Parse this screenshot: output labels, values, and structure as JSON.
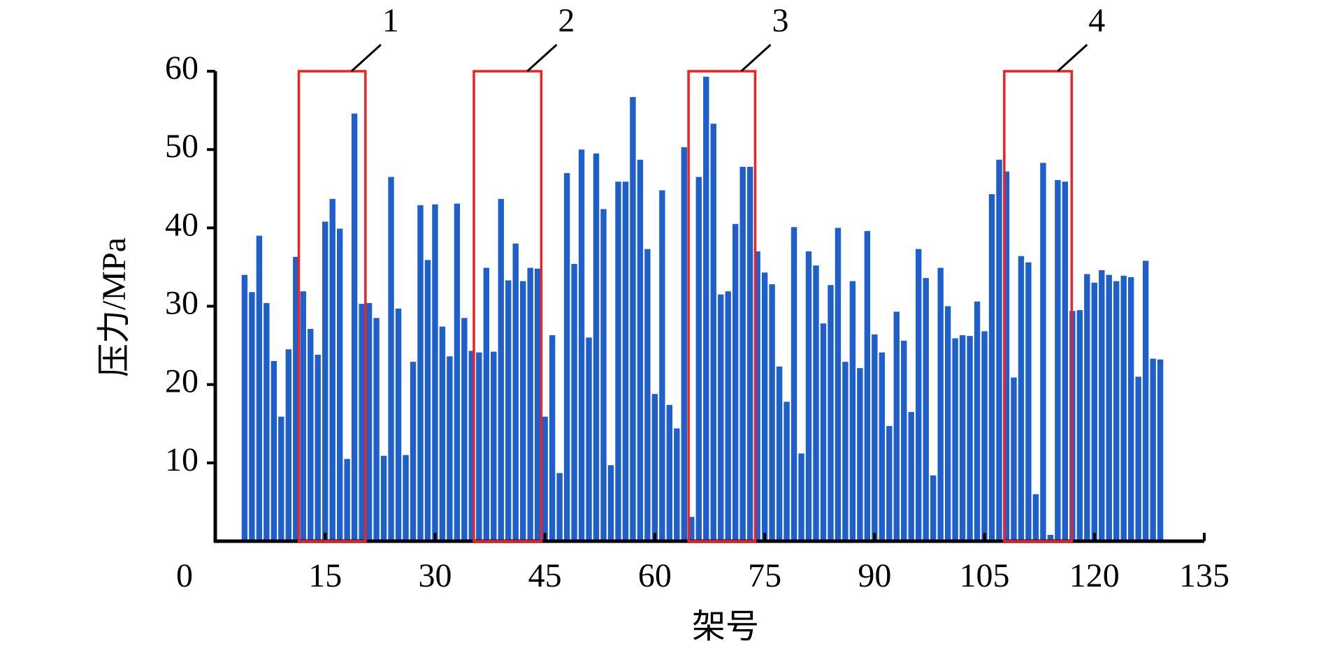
{
  "chart_data": {
    "type": "bar",
    "x_label": "架号",
    "y_label": "压力/MPa",
    "x": [
      4,
      5,
      6,
      7,
      8,
      9,
      10,
      11,
      12,
      13,
      14,
      15,
      16,
      17,
      18,
      19,
      20,
      21,
      22,
      23,
      24,
      25,
      26,
      27,
      28,
      29,
      30,
      31,
      32,
      33,
      34,
      35,
      36,
      37,
      38,
      39,
      40,
      41,
      42,
      43,
      44,
      45,
      46,
      47,
      48,
      49,
      50,
      51,
      52,
      53,
      54,
      55,
      56,
      57,
      58,
      59,
      60,
      61,
      62,
      63,
      64,
      65,
      66,
      67,
      68,
      69,
      70,
      71,
      72,
      73,
      74,
      75,
      76,
      77,
      78,
      79,
      80,
      81,
      82,
      83,
      84,
      85,
      86,
      87,
      88,
      89,
      90,
      91,
      92,
      93,
      94,
      95,
      96,
      97,
      98,
      99,
      100,
      101,
      102,
      103,
      104,
      105,
      106,
      107,
      108,
      109,
      110,
      111,
      112,
      113,
      114,
      115,
      116,
      117,
      118,
      119,
      120,
      121,
      122,
      123,
      124,
      125,
      126,
      127,
      128,
      129
    ],
    "values": [
      34,
      31.8,
      39,
      30.4,
      23,
      15.9,
      24.5,
      36.3,
      31.9,
      27.1,
      23.8,
      40.8,
      43.7,
      39.9,
      10.5,
      54.6,
      30.3,
      30.4,
      28.5,
      10.9,
      46.5,
      29.7,
      11,
      22.9,
      42.9,
      35.9,
      43,
      27.4,
      23.6,
      43.1,
      28.5,
      24.3,
      24.1,
      34.9,
      24.2,
      43.7,
      33.3,
      38,
      33.2,
      34.9,
      34.8,
      15.9,
      26.3,
      8.7,
      47,
      35.4,
      50,
      26,
      49.5,
      42.4,
      9.7,
      45.9,
      45.9,
      56.7,
      48.7,
      37.3,
      18.8,
      44.8,
      17.4,
      14.4,
      50.3,
      3.1,
      46.5,
      59.3,
      53.3,
      31.5,
      31.9,
      40.5,
      47.8,
      47.8,
      37,
      34.3,
      32.8,
      22.3,
      17.8,
      40.1,
      11.2,
      37,
      35.2,
      27.8,
      32.7,
      40,
      22.9,
      33.2,
      22.1,
      39.6,
      26.4,
      24.1,
      14.7,
      29.3,
      25.6,
      16.5,
      37.3,
      33.6,
      8.4,
      34.9,
      30,
      25.9,
      26.3,
      26.2,
      30.6,
      26.8,
      44.3,
      48.7,
      47.2,
      20.9,
      36.4,
      35.6,
      6,
      48.3,
      0.8,
      46.1,
      45.9,
      29.4,
      29.5,
      34.1,
      33,
      34.6,
      34,
      33.2,
      33.9,
      33.7,
      21,
      35.8,
      23.3,
      23.2
    ],
    "color": "#1f5fcc",
    "xlim": [
      0,
      135
    ],
    "xticks": [
      0,
      15,
      30,
      45,
      60,
      75,
      90,
      105,
      120,
      135
    ],
    "ylim": [
      0,
      60
    ],
    "yticks": [
      10,
      20,
      30,
      40,
      50,
      60
    ],
    "annotations": [
      {
        "label": "1",
        "xrange": [
          11.4,
          20.5
        ]
      },
      {
        "label": "2",
        "xrange": [
          35.3,
          44.5
        ]
      },
      {
        "label": "3",
        "xrange": [
          64.6,
          73.7
        ]
      },
      {
        "label": "4",
        "xrange": [
          107.7,
          116.9
        ]
      }
    ]
  }
}
